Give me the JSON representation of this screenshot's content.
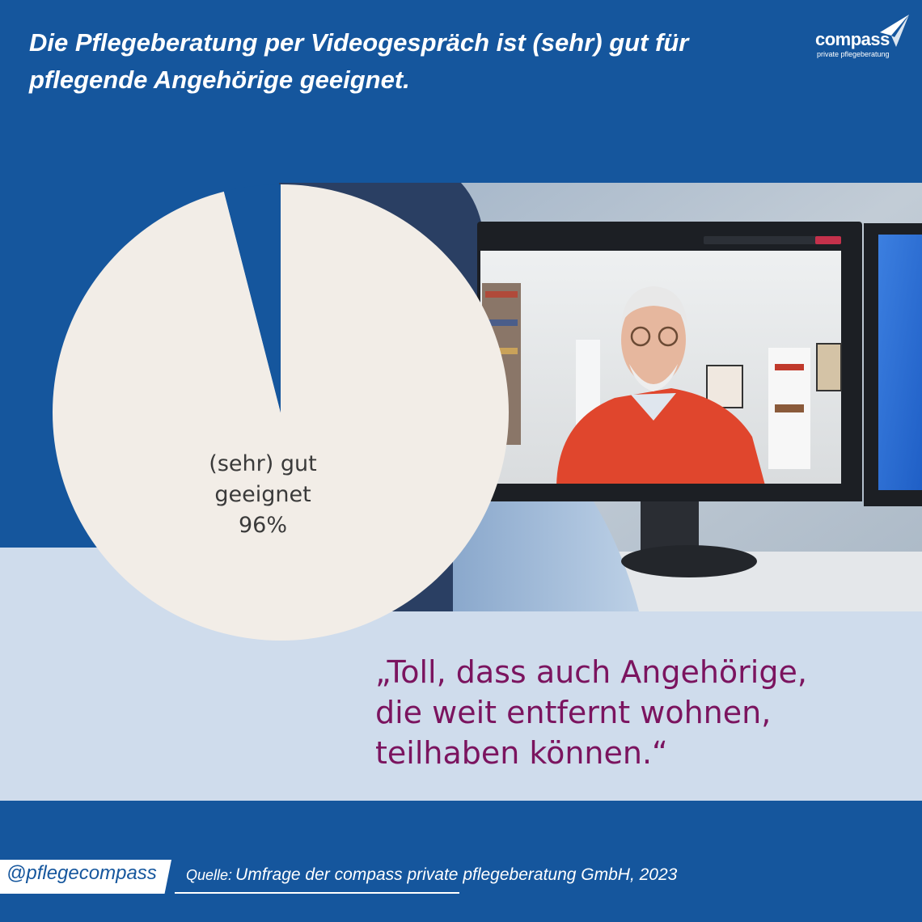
{
  "headline": {
    "line1": "Die Pflegeberatung per Videogespräch ist (sehr) gut für",
    "line2": "pflegende Angehörige geeignet."
  },
  "logo": {
    "wordmark": "compass",
    "tagline": "private pflegeberatung",
    "icon": "paper-plane-icon"
  },
  "chart_data": {
    "type": "pie",
    "slices": [
      {
        "label_lines": [
          "(sehr) gut",
          "geeignet",
          "96%"
        ],
        "value": 96,
        "color": "#f2ede7"
      },
      {
        "label_lines": [],
        "value": 4,
        "color": "#15569d"
      }
    ]
  },
  "quote": {
    "line1": "„Toll, dass auch Angehörige,",
    "line2": "die weit entfernt wohnen,",
    "line3": "teilhaben können.“"
  },
  "footer": {
    "handle": "@pflegecompass",
    "source_label": "Quelle:",
    "source_text": "Umfrage der compass private pflegeberatung GmbH, 2023"
  },
  "colors": {
    "brand_blue": "#15569d",
    "light_band": "#cfdcec",
    "pie_fill": "#f2ede7",
    "quote_purple": "#7b145f"
  }
}
